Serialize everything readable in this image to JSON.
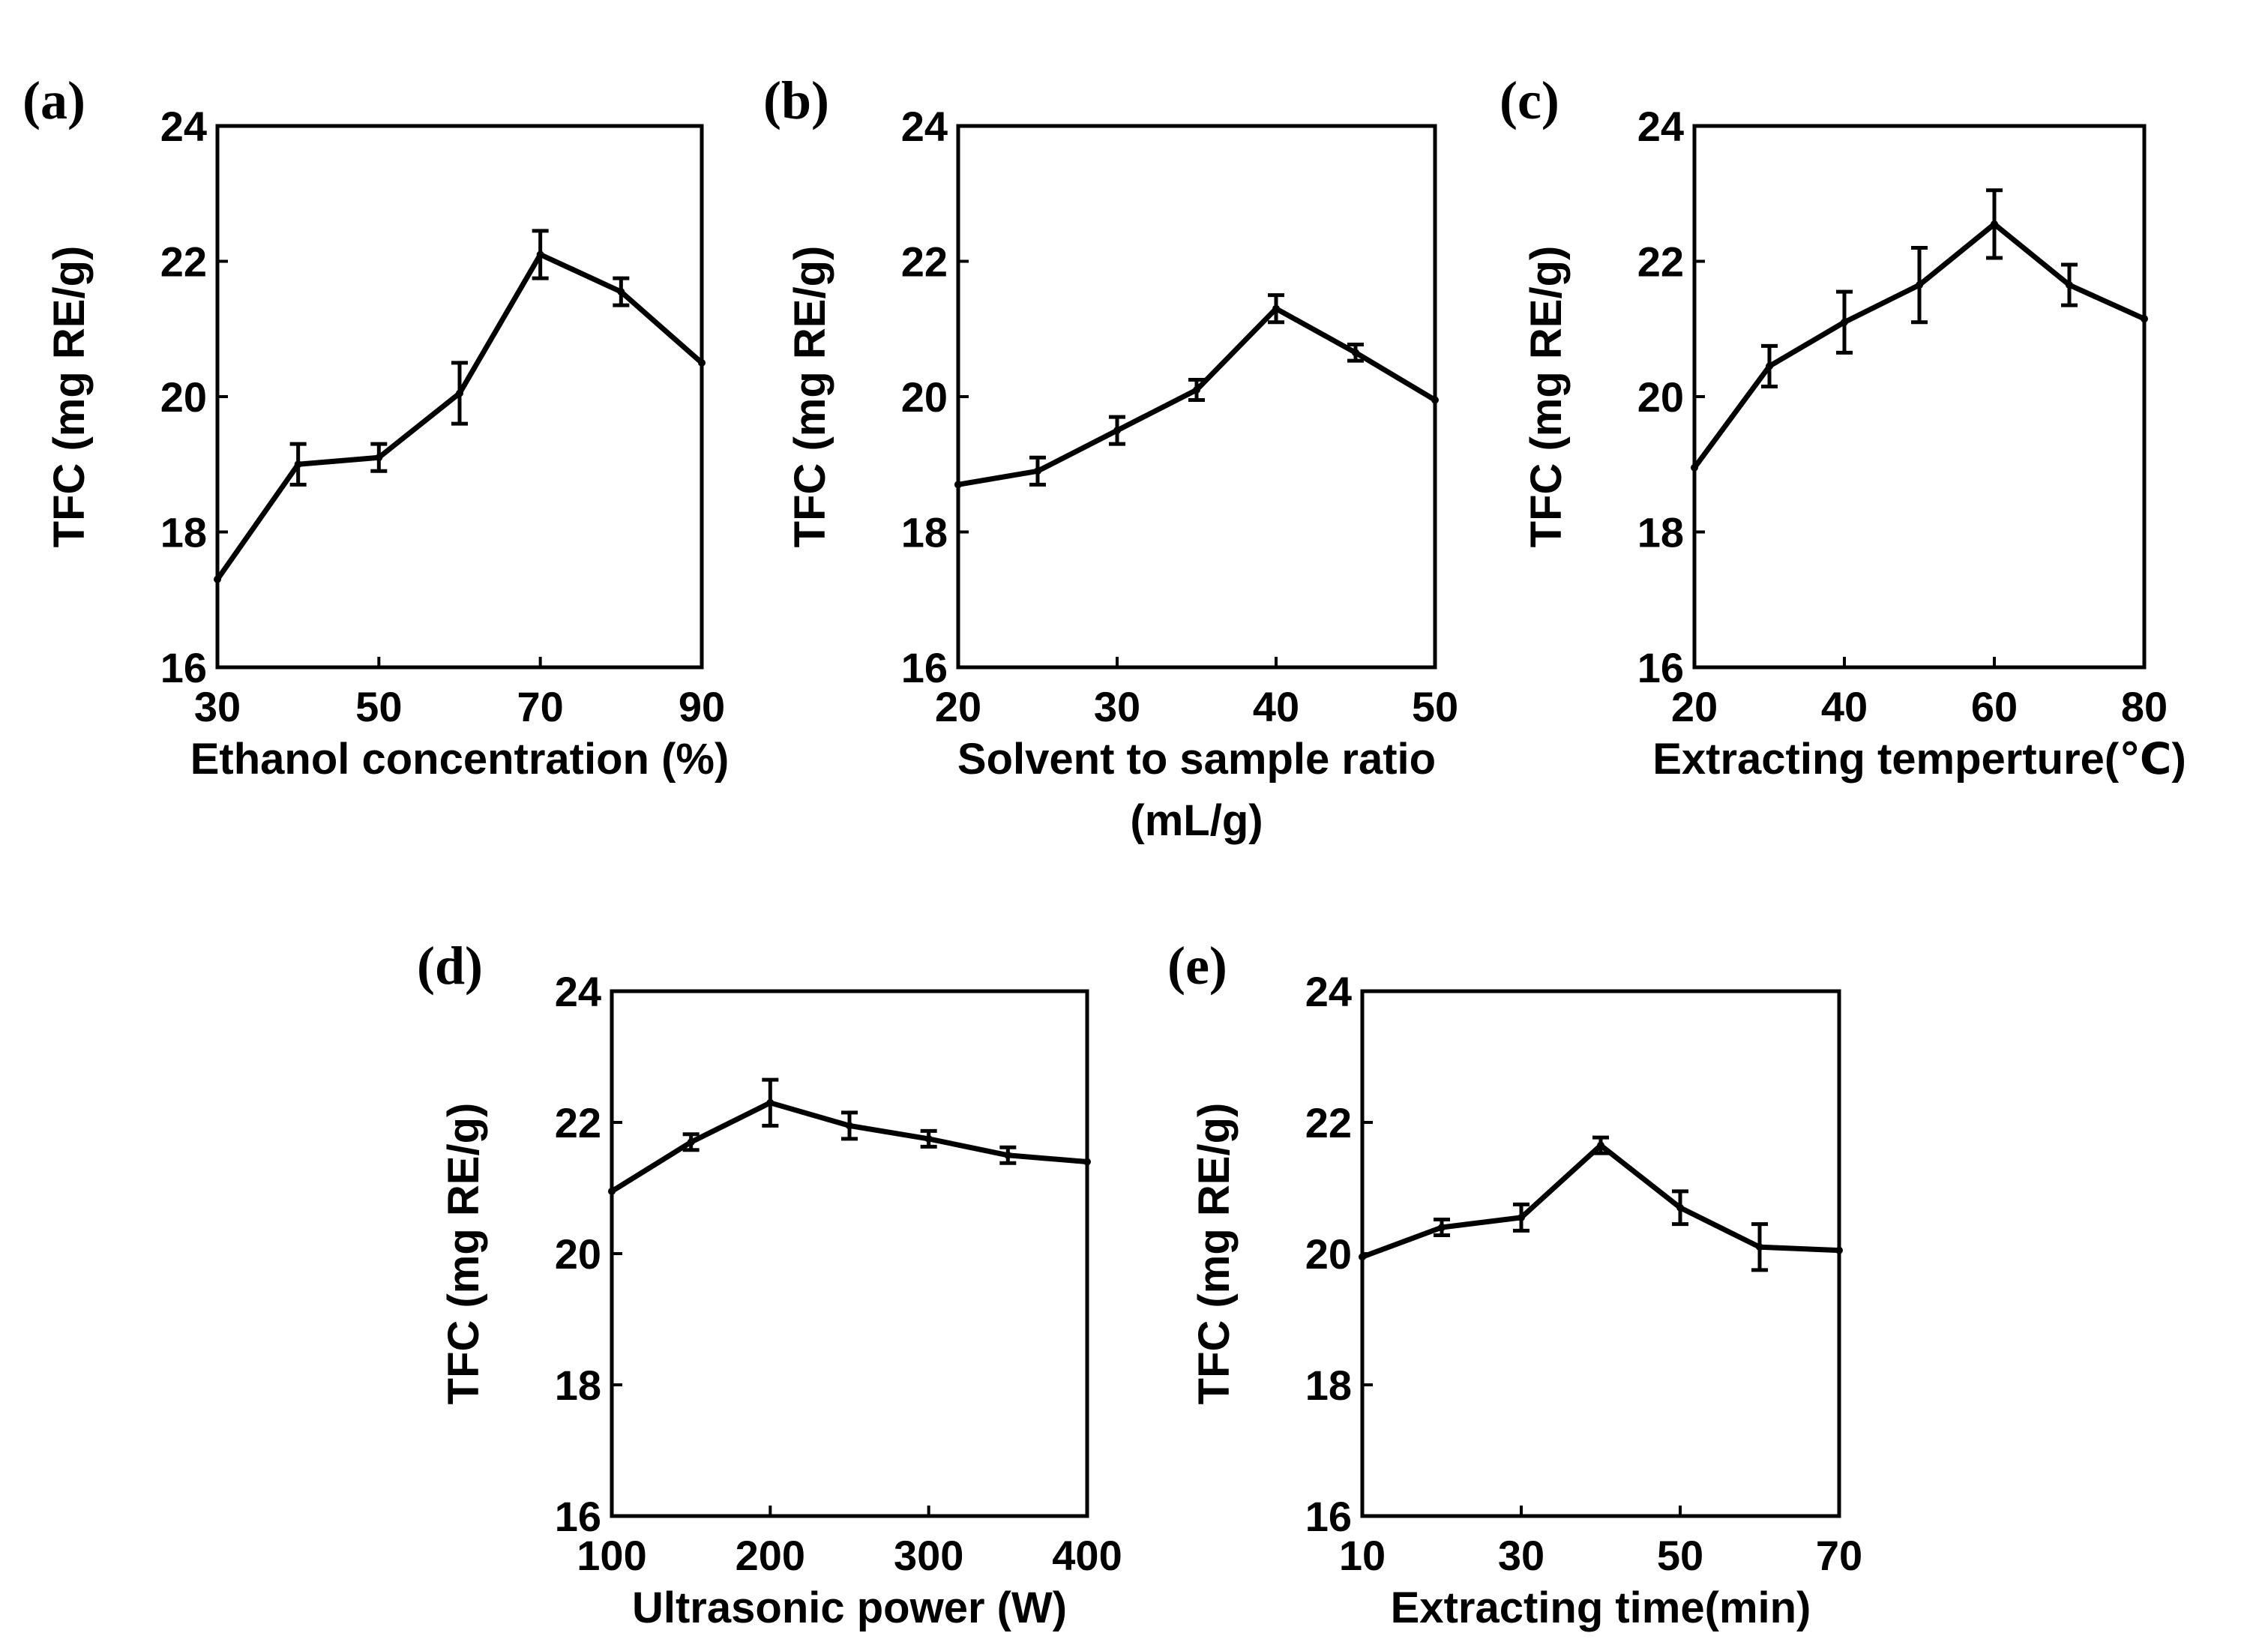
{
  "figure": {
    "description_hidden": false
  },
  "chart_data": [
    {
      "id": "a",
      "type": "line",
      "panel_label": "(a)",
      "x": [
        30,
        40,
        50,
        60,
        70,
        80,
        90
      ],
      "y": [
        17.3,
        19.0,
        19.1,
        20.05,
        22.1,
        21.55,
        20.5
      ],
      "error": [
        0,
        0.3,
        0.2,
        0.45,
        0.35,
        0.2,
        0
      ],
      "xlim": [
        30,
        90
      ],
      "ylim": [
        16,
        24
      ],
      "xticks": [
        30,
        50,
        70,
        90
      ],
      "yticks": [
        16,
        18,
        20,
        22,
        24
      ],
      "xlabel_lines": [
        "Ethanol concentration (%)"
      ],
      "ylabel": "TFC (mg RE/g)"
    },
    {
      "id": "b",
      "type": "line",
      "panel_label": "(b)",
      "x": [
        20,
        25,
        30,
        35,
        40,
        45,
        50
      ],
      "y": [
        18.7,
        18.9,
        19.5,
        20.1,
        21.3,
        20.65,
        19.95
      ],
      "error": [
        0,
        0.2,
        0.2,
        0.15,
        0.2,
        0.12,
        0
      ],
      "xlim": [
        20,
        50
      ],
      "ylim": [
        16,
        24
      ],
      "xticks": [
        20,
        30,
        40,
        50
      ],
      "yticks": [
        16,
        18,
        20,
        22,
        24
      ],
      "xlabel_lines": [
        "Solvent to sample ratio",
        "(mL/g)"
      ],
      "ylabel": "TFC (mg RE/g)"
    },
    {
      "id": "c",
      "type": "line",
      "panel_label": "(c)",
      "x": [
        20,
        30,
        40,
        50,
        60,
        70,
        80
      ],
      "y": [
        18.95,
        20.45,
        21.1,
        21.65,
        22.55,
        21.65,
        21.15
      ],
      "error": [
        0,
        0.3,
        0.45,
        0.55,
        0.5,
        0.3,
        0
      ],
      "xlim": [
        20,
        80
      ],
      "ylim": [
        16,
        24
      ],
      "xticks": [
        20,
        40,
        60,
        80
      ],
      "yticks": [
        16,
        18,
        20,
        22,
        24
      ],
      "xlabel_lines": [
        "Extracting temperture(℃)"
      ],
      "ylabel": "TFC (mg RE/g)"
    },
    {
      "id": "d",
      "type": "line",
      "panel_label": "(d)",
      "x": [
        100,
        150,
        200,
        250,
        300,
        350,
        400
      ],
      "y": [
        20.95,
        21.7,
        22.3,
        21.95,
        21.75,
        21.5,
        21.4
      ],
      "error": [
        0,
        0.12,
        0.35,
        0.2,
        0.12,
        0.12,
        0
      ],
      "xlim": [
        100,
        400
      ],
      "ylim": [
        16,
        24
      ],
      "xticks": [
        100,
        200,
        300,
        400
      ],
      "yticks": [
        16,
        18,
        20,
        22,
        24
      ],
      "xlabel_lines": [
        "Ultrasonic power (W)"
      ],
      "ylabel": "TFC (mg RE/g)"
    },
    {
      "id": "e",
      "type": "line",
      "panel_label": "(e)",
      "x": [
        10,
        20,
        30,
        40,
        50,
        60,
        70
      ],
      "y": [
        19.95,
        20.4,
        20.55,
        21.65,
        20.7,
        20.1,
        20.05
      ],
      "error": [
        0,
        0.12,
        0.2,
        0.12,
        0.25,
        0.35,
        0
      ],
      "xlim": [
        10,
        70
      ],
      "ylim": [
        16,
        24
      ],
      "xticks": [
        10,
        30,
        50,
        70
      ],
      "yticks": [
        16,
        18,
        20,
        22,
        24
      ],
      "xlabel_lines": [
        "Extracting time(min)"
      ],
      "ylabel": "TFC (mg RE/g)"
    }
  ]
}
